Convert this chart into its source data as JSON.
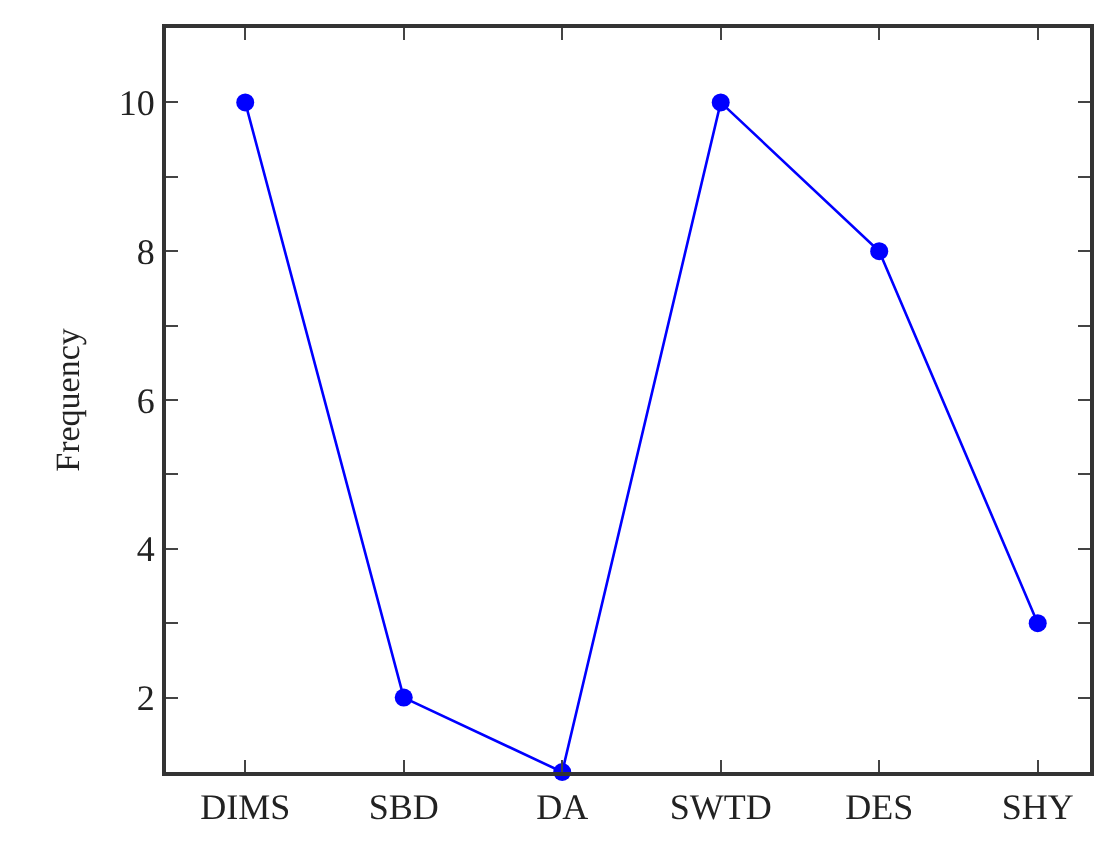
{
  "chart_data": {
    "type": "line",
    "ylabel": "Frequency",
    "categories": [
      "DIMS",
      "SBD",
      "DA",
      "SWTD",
      "DES",
      "SHY"
    ],
    "series": [
      {
        "color": "#0000ff",
        "values": [
          10,
          2,
          1,
          10,
          8,
          3
        ]
      }
    ],
    "ylim": [
      1,
      11
    ],
    "yticks": [
      {
        "value": 1,
        "label": null
      },
      2,
      {
        "value": 3,
        "label": null
      },
      4,
      {
        "value": 5,
        "label": null
      },
      6,
      {
        "value": 7,
        "label": null
      },
      8,
      {
        "value": 9,
        "label": null
      },
      10
    ],
    "legend": false,
    "marker": "circle",
    "line_style": "solid"
  }
}
